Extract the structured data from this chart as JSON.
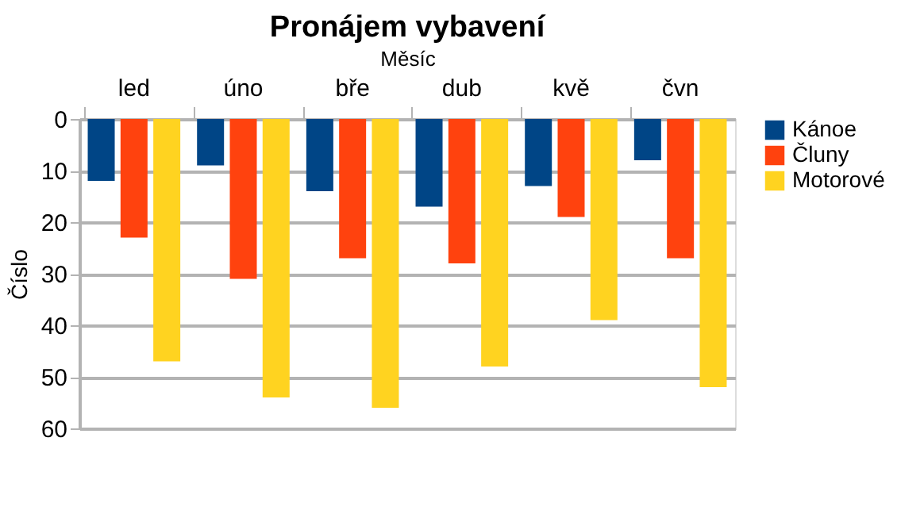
{
  "chart_data": {
    "type": "bar",
    "title": "Pronájem vybavení",
    "xlabel": "Měsíc",
    "ylabel": "Číslo",
    "categories": [
      "led",
      "úno",
      "bře",
      "dub",
      "kvě",
      "čvn"
    ],
    "series": [
      {
        "name": "Kánoe",
        "color": "#004586",
        "values": [
          12,
          9,
          14,
          17,
          13,
          8
        ]
      },
      {
        "name": "Čluny",
        "color": "#ff420e",
        "values": [
          23,
          31,
          27,
          28,
          19,
          27
        ]
      },
      {
        "name": "Motorové",
        "color": "#ffd320",
        "values": [
          47,
          54,
          56,
          48,
          39,
          52
        ]
      }
    ],
    "ylim": [
      60,
      0
    ],
    "yticks": [
      0,
      10,
      20,
      30,
      40,
      50,
      60
    ],
    "grid": "y",
    "legend": "right"
  }
}
